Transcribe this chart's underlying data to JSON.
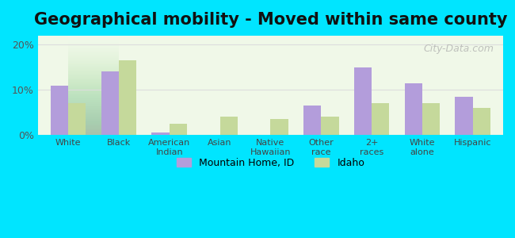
{
  "title": "Geographical mobility - Moved within same county",
  "categories": [
    "White",
    "Black",
    "American\nIndian",
    "Asian",
    "Native\nHawaiian",
    "Other\nrace",
    "2+\nraces",
    "White\nalone",
    "Hispanic"
  ],
  "mountain_home": [
    11.0,
    14.0,
    0.5,
    0.0,
    0.0,
    6.5,
    15.0,
    11.5,
    8.5
  ],
  "idaho": [
    7.0,
    16.5,
    2.5,
    4.0,
    3.5,
    4.0,
    7.0,
    7.0,
    6.0
  ],
  "color_mountain": "#b39ddb",
  "color_idaho": "#c5d99b",
  "background_outer": "#00e5ff",
  "background_chart": "#f0f8e8",
  "ylim": [
    0,
    22
  ],
  "yticks": [
    0,
    10,
    20
  ],
  "ytick_labels": [
    "0%",
    "10%",
    "20%"
  ],
  "legend_mountain": "Mountain Home, ID",
  "legend_idaho": "Idaho",
  "watermark": "City-Data.com",
  "title_fontsize": 15,
  "bar_width": 0.35
}
